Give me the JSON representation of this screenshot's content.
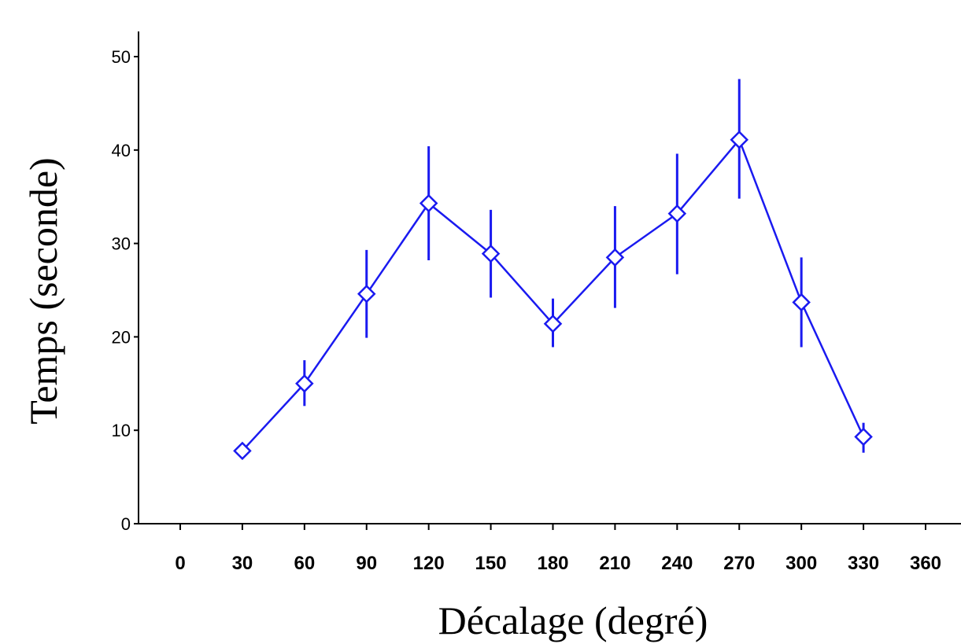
{
  "chart_data": {
    "type": "line",
    "xlabel": "Décalage (degré)",
    "ylabel": "Temps (seconde)",
    "xlim": [
      0,
      360
    ],
    "ylim": [
      0,
      50
    ],
    "x_ticks": [
      0,
      30,
      60,
      90,
      120,
      150,
      180,
      210,
      240,
      270,
      300,
      330,
      360
    ],
    "y_ticks": [
      0,
      10,
      20,
      30,
      40,
      50
    ],
    "grid": false,
    "marker": "diamond",
    "color": "#1a1af0",
    "series": [
      {
        "x": [
          30,
          60,
          90,
          120,
          150,
          180,
          210,
          240,
          270,
          300,
          330
        ],
        "values": [
          7.8,
          15.0,
          24.6,
          34.3,
          28.9,
          21.4,
          28.5,
          33.2,
          41.1,
          23.7,
          9.3
        ],
        "err_low": [
          7.8,
          12.6,
          19.9,
          28.2,
          24.2,
          18.9,
          23.1,
          26.7,
          34.8,
          18.9,
          7.6
        ],
        "err_high": [
          7.8,
          17.5,
          29.3,
          40.4,
          33.6,
          24.1,
          34.0,
          39.6,
          47.6,
          28.5,
          10.8
        ]
      }
    ]
  }
}
